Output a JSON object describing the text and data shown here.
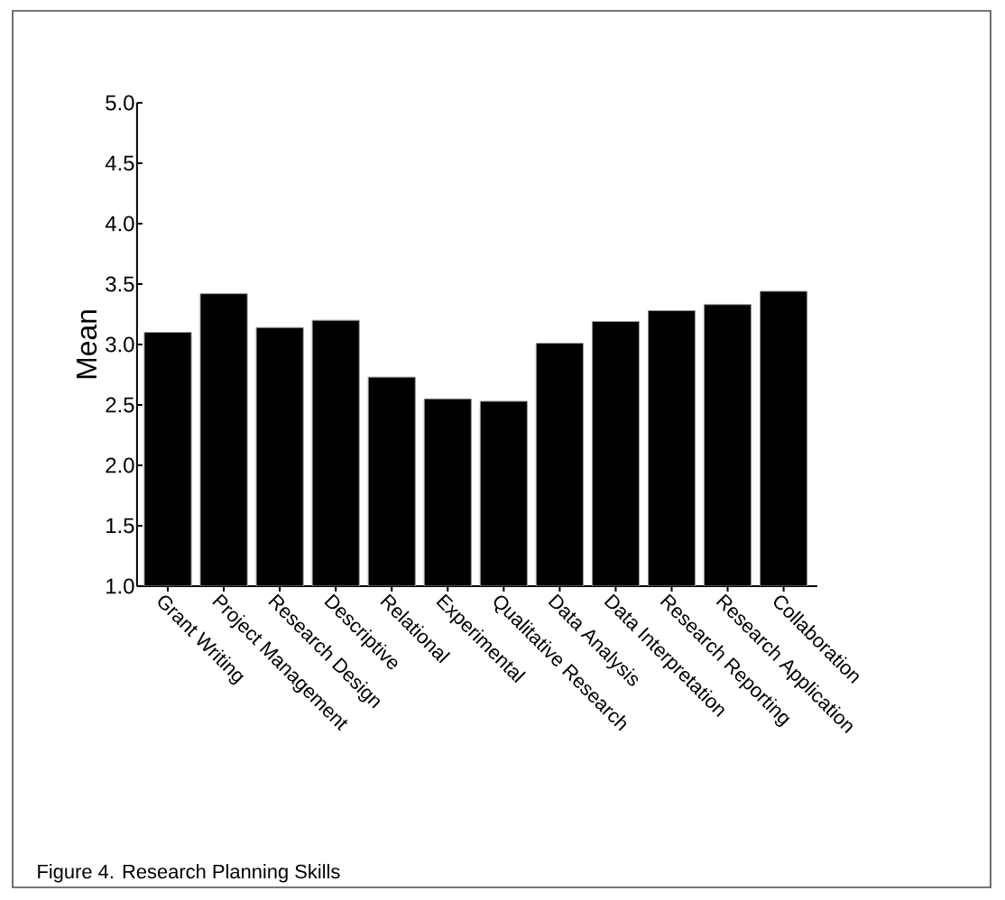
{
  "chart_data": {
    "type": "bar",
    "ylabel": "Mean",
    "annotations": [
      "Figure 4.  Research Planning Skills"
    ],
    "categories": [
      "Grant Writing",
      "Project Management",
      "Research Design",
      "Descriptive",
      "Relational",
      "Experimental",
      "Qualitative Research",
      "Data Analysis",
      "Data Interpretation",
      "Research Reporting",
      "Research Application",
      "Collaboration"
    ],
    "values": [
      3.1,
      3.42,
      3.14,
      3.2,
      2.73,
      2.55,
      2.53,
      3.01,
      3.19,
      3.28,
      3.33,
      3.44
    ],
    "color": "#000000",
    "ylim": [
      1.0,
      5.0
    ],
    "yticks": [
      {
        "value": 1,
        "label": "1.0"
      },
      {
        "value": 1.5,
        "label": "1.5"
      },
      {
        "value": 2,
        "label": "2.0"
      },
      {
        "value": 2.5,
        "label": "2.5"
      },
      {
        "value": 3,
        "label": "3.0"
      },
      {
        "value": 3.5,
        "label": "3.5"
      },
      {
        "value": 4,
        "label": "4.0"
      },
      {
        "value": 4.5,
        "label": "4.5"
      },
      {
        "value": 5,
        "label": "5.0"
      }
    ],
    "grid": false
  }
}
